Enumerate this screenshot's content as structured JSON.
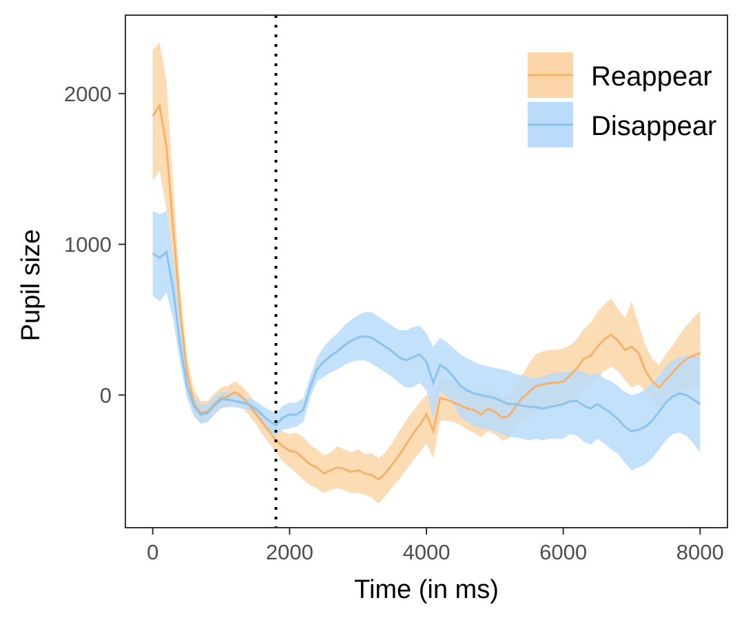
{
  "chart_data": {
    "type": "line",
    "xlabel": "Time (in ms)",
    "ylabel": "Pupil size",
    "xlim": [
      -400,
      8400
    ],
    "ylim": [
      -880,
      2520
    ],
    "xticks": [
      0,
      2000,
      4000,
      6000,
      8000
    ],
    "yticks": [
      0,
      1000,
      2000
    ],
    "xtick_labels": [
      "0",
      "2000",
      "4000",
      "6000",
      "8000"
    ],
    "ytick_labels": [
      "0",
      "1000",
      "2000"
    ],
    "vline_x": 1800,
    "vline_style": "dotted",
    "grid": false,
    "legend_position": "top-right",
    "x": [
      0,
      100,
      200,
      300,
      400,
      500,
      600,
      700,
      800,
      900,
      1000,
      1100,
      1200,
      1300,
      1400,
      1500,
      1600,
      1700,
      1800,
      1900,
      2000,
      2100,
      2200,
      2300,
      2400,
      2500,
      2600,
      2700,
      2800,
      2900,
      3000,
      3100,
      3200,
      3300,
      3400,
      3500,
      3600,
      3700,
      3800,
      3900,
      4000,
      4100,
      4200,
      4300,
      4400,
      4500,
      4600,
      4700,
      4800,
      4900,
      5000,
      5100,
      5200,
      5300,
      5400,
      5500,
      5600,
      5700,
      5800,
      5900,
      6000,
      6100,
      6200,
      6300,
      6400,
      6500,
      6600,
      6700,
      6800,
      6900,
      7000,
      7100,
      7200,
      7300,
      7400,
      7500,
      7600,
      7700,
      7800,
      7900,
      8000
    ],
    "series": [
      {
        "name": "Reappear",
        "color": "#F4B26A",
        "fill": "#FCD6A8",
        "mean": [
          1850,
          1920,
          1650,
          1100,
          550,
          150,
          -50,
          -120,
          -110,
          -60,
          -20,
          -10,
          20,
          -10,
          -60,
          -120,
          -180,
          -240,
          -300,
          -340,
          -370,
          -380,
          -420,
          -460,
          -480,
          -520,
          -500,
          -480,
          -490,
          -510,
          -500,
          -520,
          -530,
          -560,
          -520,
          -460,
          -400,
          -330,
          -260,
          -200,
          -130,
          -240,
          -20,
          -30,
          -50,
          -70,
          -90,
          -100,
          -130,
          -90,
          -110,
          -150,
          -140,
          -80,
          -20,
          20,
          60,
          70,
          80,
          80,
          90,
          130,
          180,
          240,
          260,
          320,
          370,
          400,
          360,
          300,
          320,
          280,
          160,
          90,
          50,
          100,
          150,
          200,
          240,
          260,
          280
        ],
        "upper": [
          2290,
          2340,
          2080,
          1380,
          720,
          260,
          40,
          -40,
          -40,
          10,
          50,
          60,
          90,
          60,
          10,
          -50,
          -110,
          -170,
          -220,
          -240,
          -260,
          -250,
          -280,
          -330,
          -360,
          -400,
          -380,
          -340,
          -360,
          -380,
          -360,
          -390,
          -390,
          -420,
          -380,
          -320,
          -240,
          -170,
          -110,
          -50,
          0,
          -20,
          120,
          100,
          80,
          60,
          40,
          20,
          0,
          40,
          20,
          -10,
          0,
          60,
          130,
          210,
          270,
          290,
          300,
          300,
          310,
          330,
          370,
          440,
          480,
          550,
          600,
          640,
          570,
          510,
          620,
          470,
          330,
          240,
          200,
          270,
          330,
          400,
          460,
          510,
          560
        ],
        "lower": [
          1420,
          1490,
          1230,
          830,
          390,
          50,
          -130,
          -190,
          -180,
          -130,
          -90,
          -80,
          -50,
          -80,
          -130,
          -190,
          -260,
          -320,
          -380,
          -440,
          -480,
          -520,
          -560,
          -600,
          -620,
          -650,
          -630,
          -620,
          -630,
          -650,
          -650,
          -660,
          -680,
          -720,
          -670,
          -610,
          -560,
          -500,
          -440,
          -380,
          -320,
          -420,
          -170,
          -170,
          -180,
          -200,
          -230,
          -250,
          -280,
          -240,
          -260,
          -300,
          -290,
          -220,
          -170,
          -150,
          -120,
          -100,
          -90,
          -80,
          -80,
          -50,
          -10,
          40,
          60,
          110,
          160,
          190,
          160,
          100,
          50,
          70,
          30,
          -30,
          -80,
          -60,
          -20,
          20,
          40,
          50,
          50
        ]
      },
      {
        "name": "Disappear",
        "color": "#8AC3F0",
        "fill": "#BADCFA",
        "mean": [
          940,
          910,
          950,
          700,
          330,
          60,
          -70,
          -130,
          -120,
          -70,
          -30,
          -30,
          -40,
          -50,
          -60,
          -90,
          -130,
          -170,
          -200,
          -150,
          -130,
          -130,
          -100,
          50,
          170,
          220,
          260,
          290,
          330,
          360,
          380,
          390,
          380,
          350,
          320,
          290,
          250,
          230,
          250,
          270,
          220,
          80,
          200,
          170,
          120,
          60,
          30,
          10,
          0,
          -10,
          -20,
          -40,
          -60,
          -60,
          -70,
          -80,
          -80,
          -90,
          -80,
          -70,
          -60,
          -40,
          -40,
          -70,
          -90,
          -60,
          -90,
          -120,
          -160,
          -210,
          -240,
          -230,
          -210,
          -170,
          -110,
          -50,
          -10,
          10,
          0,
          -30,
          -60
        ],
        "upper": [
          1220,
          1200,
          1220,
          900,
          450,
          140,
          0,
          -60,
          -60,
          -10,
          20,
          20,
          0,
          -10,
          -20,
          -40,
          -70,
          -100,
          -120,
          -70,
          -50,
          -50,
          -20,
          120,
          250,
          320,
          370,
          410,
          460,
          500,
          530,
          550,
          550,
          520,
          490,
          460,
          430,
          430,
          450,
          460,
          410,
          320,
          380,
          350,
          310,
          270,
          240,
          220,
          200,
          190,
          180,
          170,
          160,
          140,
          130,
          120,
          110,
          120,
          140,
          150,
          150,
          160,
          170,
          150,
          130,
          150,
          110,
          90,
          60,
          20,
          0,
          10,
          40,
          80,
          130,
          190,
          230,
          250,
          260,
          260,
          250
        ],
        "lower": [
          660,
          620,
          680,
          500,
          210,
          -20,
          -140,
          -190,
          -180,
          -130,
          -80,
          -80,
          -80,
          -90,
          -100,
          -130,
          -190,
          -240,
          -270,
          -230,
          -220,
          -210,
          -180,
          -20,
          90,
          120,
          150,
          170,
          200,
          220,
          230,
          230,
          210,
          180,
          150,
          120,
          80,
          50,
          50,
          80,
          30,
          -160,
          20,
          -10,
          -70,
          -150,
          -180,
          -210,
          -220,
          -230,
          -240,
          -260,
          -280,
          -280,
          -290,
          -300,
          -290,
          -300,
          -290,
          -290,
          -290,
          -260,
          -270,
          -310,
          -330,
          -290,
          -320,
          -360,
          -390,
          -450,
          -500,
          -480,
          -460,
          -420,
          -360,
          -300,
          -260,
          -250,
          -270,
          -320,
          -380
        ]
      }
    ]
  }
}
